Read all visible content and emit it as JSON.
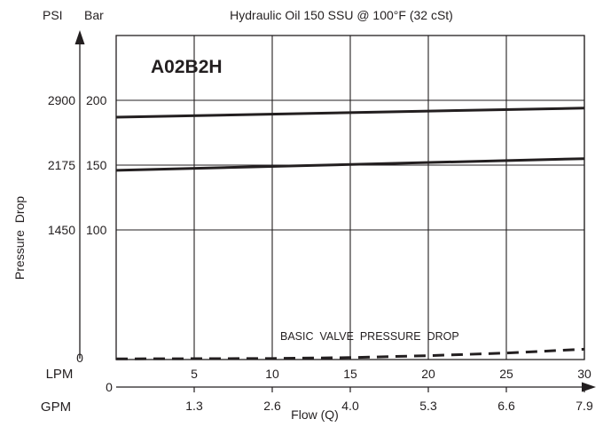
{
  "chart_data": {
    "type": "line",
    "title": "Hydraulic Oil 150 SSU @ 100°F (32 cSt)",
    "model_label": "A02B2H",
    "annotation": "BASIC  VALVE  PRESSURE  DROP",
    "ylabel": "Pressure  Drop",
    "xlabel": "Flow (Q)",
    "psi_header": "PSI",
    "bar_header": "Bar",
    "lpm_label": "LPM",
    "gpm_label": "GPM",
    "psi_zero": "0",
    "flow_zero": "0",
    "xlim": [
      0,
      30
    ],
    "ylim_bar": [
      0,
      250
    ],
    "x_ticks": [
      {
        "lpm": "5",
        "gpm": "1.3",
        "value": 5
      },
      {
        "lpm": "10",
        "gpm": "2.6",
        "value": 10
      },
      {
        "lpm": "15",
        "gpm": "4.0",
        "value": 15
      },
      {
        "lpm": "20",
        "gpm": "5.3",
        "value": 20
      },
      {
        "lpm": "25",
        "gpm": "6.6",
        "value": 25
      },
      {
        "lpm": "30",
        "gpm": "7.9",
        "value": 30
      }
    ],
    "y_ticks": [
      {
        "bar": "200",
        "psi": "2900",
        "value": 200
      },
      {
        "bar": "150",
        "psi": "2175",
        "value": 150
      },
      {
        "bar": "100",
        "psi": "1450",
        "value": 100
      }
    ],
    "series": [
      {
        "style": "solid",
        "color": "#231f20",
        "x": [
          0,
          30
        ],
        "y": [
          187,
          194
        ]
      },
      {
        "style": "solid",
        "color": "#231f20",
        "x": [
          0,
          30
        ],
        "y": [
          146,
          155
        ]
      },
      {
        "style": "dashed",
        "color": "#231f20",
        "x": [
          0,
          10,
          15,
          20,
          25,
          30
        ],
        "y": [
          0.5,
          0.8,
          1.5,
          3,
          5,
          8
        ]
      }
    ]
  }
}
